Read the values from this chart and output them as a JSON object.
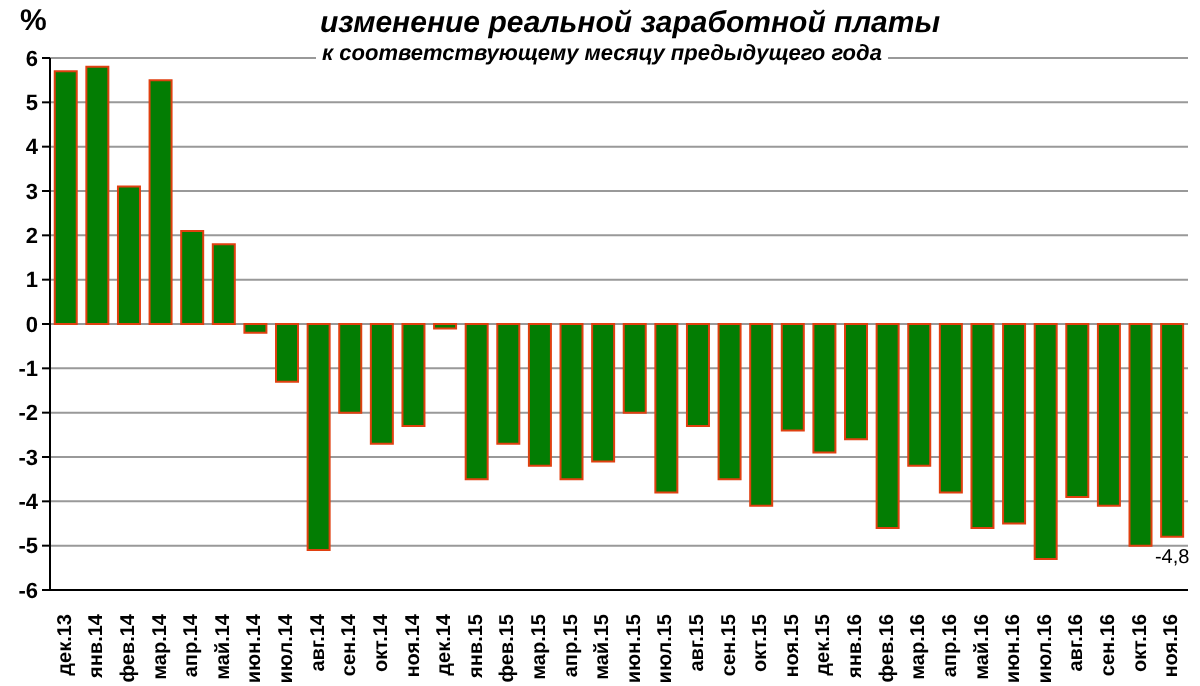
{
  "chart_data": {
    "type": "bar",
    "title": "изменение реальной заработной платы",
    "subtitle": "к соответствующему месяцу предыдущего года",
    "ylabel": "%",
    "categories": [
      "дек.13",
      "янв.14",
      "фев.14",
      "мар.14",
      "апр.14",
      "май.14",
      "июн.14",
      "июл.14",
      "авг.14",
      "сен.14",
      "окт.14",
      "ноя.14",
      "дек.14",
      "янв.15",
      "фев.15",
      "мар.15",
      "апр.15",
      "май.15",
      "июн.15",
      "июл.15",
      "авг.15",
      "сен.15",
      "окт.15",
      "ноя.15",
      "дек.15",
      "янв.16",
      "фев.16",
      "мар.16",
      "апр.16",
      "май.16",
      "июн.16",
      "июл.16",
      "авг.16",
      "сен.16",
      "окт.16",
      "ноя.16"
    ],
    "values": [
      5.7,
      5.8,
      3.1,
      5.5,
      2.1,
      1.8,
      -0.2,
      -1.3,
      -5.1,
      -2.0,
      -2.7,
      -2.3,
      -0.1,
      -3.5,
      -2.7,
      -3.2,
      -3.5,
      -3.1,
      -2.0,
      -3.8,
      -2.3,
      -3.5,
      -4.1,
      -2.4,
      -2.9,
      -2.6,
      -4.6,
      -3.2,
      -3.8,
      -4.6,
      -4.5,
      -5.3,
      -3.9,
      -4.1,
      -5.0,
      -4.8
    ],
    "value_labels": [
      null,
      null,
      null,
      null,
      null,
      null,
      null,
      null,
      null,
      null,
      null,
      null,
      null,
      null,
      null,
      null,
      null,
      null,
      null,
      null,
      null,
      null,
      null,
      null,
      null,
      null,
      null,
      null,
      null,
      null,
      null,
      null,
      null,
      null,
      null,
      "-4,8"
    ],
    "color": "#037d03",
    "ylim": [
      -6,
      6
    ],
    "yticks": [
      -6,
      -5,
      -4,
      -3,
      -2,
      -1,
      0,
      1,
      2,
      3,
      4,
      5,
      6
    ],
    "grid": "y",
    "legend": false
  }
}
